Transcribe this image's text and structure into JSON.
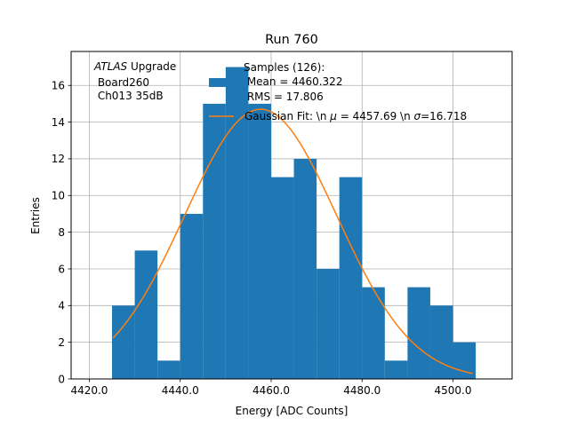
{
  "chart_data": {
    "type": "bar",
    "title": "Run 760",
    "xlabel": "Energy [ADC Counts]",
    "ylabel": "Entries",
    "xlim": [
      4416.0,
      4513.0
    ],
    "ylim": [
      0,
      17.85
    ],
    "grid": true,
    "xticks": [
      4420,
      4440,
      4460,
      4480,
      4500
    ],
    "xtick_labels": [
      "4420.0",
      "4440.0",
      "4460.0",
      "4480.0",
      "4500.0"
    ],
    "yticks": [
      0,
      2,
      4,
      6,
      8,
      10,
      12,
      14,
      16
    ],
    "yticks_labels": [
      "0",
      "2",
      "4",
      "6",
      "8",
      "10",
      "12",
      "14",
      "16"
    ],
    "histogram": {
      "name": "Samples (126):",
      "color": "#1f77b4",
      "bin_edges": [
        4425,
        4430,
        4435,
        4440,
        4445,
        4450,
        4455,
        4460,
        4465,
        4470,
        4475,
        4480,
        4485,
        4490,
        4495,
        4500,
        4505
      ],
      "counts": [
        4,
        7,
        1,
        9,
        15,
        17,
        15,
        11,
        12,
        6,
        11,
        5,
        1,
        5,
        4,
        2
      ]
    },
    "fit": {
      "color": "#ff7f0e",
      "amplitude": 14.7,
      "mu": 4457.69,
      "sigma": 16.718,
      "x_range": [
        4425.2,
        4504.3
      ]
    },
    "annotation": {
      "italic": "ATLAS",
      "rest": " Upgrade",
      "line2": " Board260",
      "line3": " Ch013 35dB"
    },
    "legend": {
      "hist_line1": "Samples (126):",
      "hist_line2": " Mean = 4460.322",
      "hist_line3": " RMS = 17.806",
      "fit_prefix": "Gaussian Fit: \\n ",
      "fit_mu_symbol": "μ",
      "fit_mid": " = 4457.69 \\n ",
      "fit_sigma_symbol": "σ",
      "fit_suffix": "=16.718"
    }
  }
}
